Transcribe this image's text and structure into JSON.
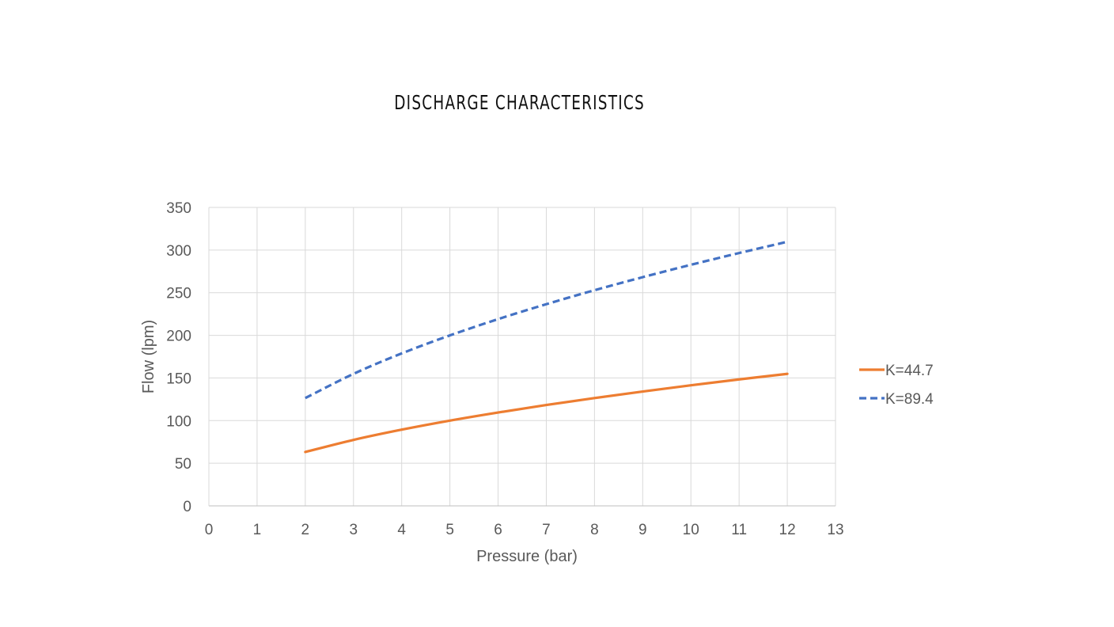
{
  "chart_data": {
    "type": "line",
    "title": "DISCHARGE CHARACTERISTICS",
    "xlabel": "Pressure (bar)",
    "ylabel": "Flow (lpm)",
    "xlim": [
      0,
      13
    ],
    "ylim": [
      0,
      350
    ],
    "xticks": [
      "0",
      "1",
      "2",
      "3",
      "4",
      "5",
      "6",
      "7",
      "8",
      "9",
      "10",
      "11",
      "12",
      "13"
    ],
    "yticks": [
      "0",
      "50",
      "100",
      "150",
      "200",
      "250",
      "300",
      "350"
    ],
    "grid": true,
    "legend_position": "right",
    "x": [
      2,
      3,
      4,
      5,
      6,
      7,
      8,
      9,
      10,
      11,
      12
    ],
    "series": [
      {
        "name": "K=44.7",
        "color": "#ED7D31",
        "dash": "solid",
        "values": [
          63.2,
          77.4,
          89.4,
          100.0,
          109.5,
          118.3,
          126.4,
          134.1,
          141.4,
          148.3,
          154.8
        ]
      },
      {
        "name": "K=89.4",
        "color": "#4472C4",
        "dash": "dashed",
        "values": [
          126.4,
          154.8,
          178.8,
          199.9,
          219.0,
          236.5,
          252.9,
          268.2,
          282.7,
          296.5,
          309.7
        ]
      }
    ]
  }
}
